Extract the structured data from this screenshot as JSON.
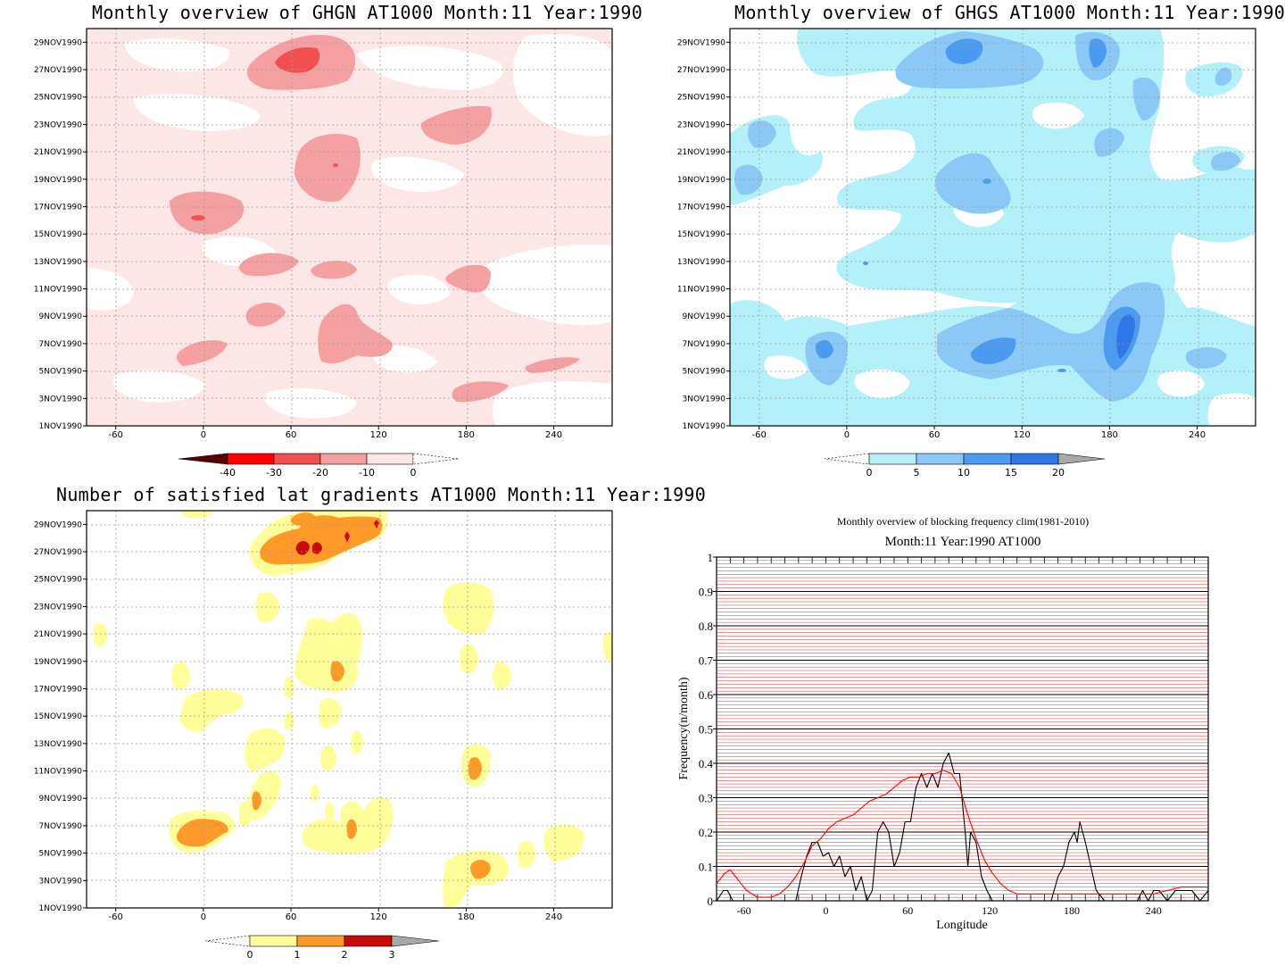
{
  "chart_data": [
    {
      "type": "heatmap",
      "title": "Monthly overview of GHGN AT1000 Month:11 Year:1990",
      "x_ticks": [
        "-60",
        "0",
        "60",
        "120",
        "180",
        "240"
      ],
      "y_ticks": [
        "1NOV1990",
        "3NOV1990",
        "5NOV1990",
        "7NOV1990",
        "9NOV1990",
        "11NOV1990",
        "13NOV1990",
        "15NOV1990",
        "17NOV1990",
        "19NOV1990",
        "21NOV1990",
        "23NOV1990",
        "25NOV1990",
        "27NOV1990",
        "29NOV1990"
      ],
      "xlim": [
        -80,
        280
      ],
      "grid": true,
      "colorbar": {
        "ticks": [
          "-40",
          "-30",
          "-20",
          "-10",
          "0"
        ],
        "colors": [
          "#5a0000",
          "#ff0000",
          "#f05050",
          "#f5a0a0",
          "#fde6e6"
        ],
        "extends": "both"
      },
      "color_levels": [
        {
          "range": [
            -10,
            0
          ],
          "color": "#fde6e6"
        },
        {
          "range": [
            -20,
            -10
          ],
          "color": "#f5a0a0"
        },
        {
          "range": [
            -30,
            -20
          ],
          "color": "#f05050"
        }
      ]
    },
    {
      "type": "heatmap",
      "title": "Monthly overview of GHGS AT1000 Month:11 Year:1990",
      "x_ticks": [
        "-60",
        "0",
        "60",
        "120",
        "180",
        "240"
      ],
      "y_ticks": [
        "1NOV1990",
        "3NOV1990",
        "5NOV1990",
        "7NOV1990",
        "9NOV1990",
        "11NOV1990",
        "13NOV1990",
        "15NOV1990",
        "17NOV1990",
        "19NOV1990",
        "21NOV1990",
        "23NOV1990",
        "25NOV1990",
        "27NOV1990",
        "29NOV1990"
      ],
      "xlim": [
        -80,
        280
      ],
      "grid": true,
      "colorbar": {
        "ticks": [
          "0",
          "5",
          "10",
          "15",
          "20"
        ],
        "colors": [
          "#b4f0fa",
          "#8cc8f5",
          "#4b9bf0",
          "#2d78e6",
          "#a8a8a8"
        ],
        "extends": "both"
      },
      "color_levels": [
        {
          "range": [
            0,
            5
          ],
          "color": "#b4f0fa"
        },
        {
          "range": [
            5,
            10
          ],
          "color": "#8cc8f5"
        },
        {
          "range": [
            10,
            15
          ],
          "color": "#4b9bf0"
        },
        {
          "range": [
            15,
            20
          ],
          "color": "#2d78e6"
        }
      ]
    },
    {
      "type": "heatmap",
      "title": "Number of satisfied lat gradients AT1000 Month:11 Year:1990",
      "x_ticks": [
        "-60",
        "0",
        "60",
        "120",
        "180",
        "240"
      ],
      "y_ticks": [
        "1NOV1990",
        "3NOV1990",
        "5NOV1990",
        "7NOV1990",
        "9NOV1990",
        "11NOV1990",
        "13NOV1990",
        "15NOV1990",
        "17NOV1990",
        "19NOV1990",
        "21NOV1990",
        "23NOV1990",
        "25NOV1990",
        "27NOV1990",
        "29NOV1990"
      ],
      "xlim": [
        -80,
        280
      ],
      "grid": true,
      "colorbar": {
        "ticks": [
          "0",
          "1",
          "2",
          "3"
        ],
        "colors": [
          "#ffff9a",
          "#ff9a28",
          "#c80a0a",
          "#a8a8a8"
        ],
        "extends": "both"
      },
      "color_levels": [
        {
          "range": [
            0,
            1
          ],
          "color": "#ffff9a"
        },
        {
          "range": [
            1,
            2
          ],
          "color": "#ff9a28"
        },
        {
          "range": [
            2,
            3
          ],
          "color": "#c80a0a"
        }
      ]
    },
    {
      "type": "line",
      "title": "Monthly overview of blocking frequency clim(1981-2010)",
      "subtitle": "Month:11 Year:1990  AT1000",
      "xlabel": "Longitude",
      "ylabel": "Frequency(n/month)",
      "xlim": [
        -80,
        280
      ],
      "ylim": [
        0,
        1
      ],
      "x_ticks": [
        "-60",
        "0",
        "60",
        "120",
        "180",
        "240"
      ],
      "y_ticks": [
        "0",
        "0.1",
        "0.2",
        "0.3",
        "0.4",
        "0.5",
        "0.6",
        "0.7",
        "0.8",
        "0.9",
        "1"
      ],
      "grid": true,
      "series": [
        {
          "color": "#000000",
          "x": [
            -80,
            -75,
            -72,
            -68,
            -64,
            -60,
            -52,
            -46,
            -40,
            -35,
            -30,
            -22,
            -18,
            -14,
            -10,
            -6,
            -2,
            2,
            6,
            10,
            14,
            18,
            22,
            26,
            30,
            34,
            38,
            42,
            46,
            50,
            54,
            58,
            62,
            66,
            70,
            74,
            78,
            82,
            86,
            90,
            94,
            98,
            102,
            104,
            106,
            110,
            114,
            118,
            122,
            126,
            130,
            140,
            150,
            160,
            165,
            170,
            174,
            178,
            182,
            184,
            186,
            190,
            194,
            198,
            204,
            210,
            216,
            222,
            228,
            232,
            236,
            240,
            244,
            250,
            256,
            262,
            268,
            274,
            280
          ],
          "y": [
            0,
            0.03,
            0.03,
            0,
            0,
            0,
            0,
            0,
            0,
            0,
            0,
            0,
            0.07,
            0.13,
            0.17,
            0.17,
            0.13,
            0.14,
            0.1,
            0.13,
            0.07,
            0.1,
            0.03,
            0.07,
            0,
            0.03,
            0.2,
            0.23,
            0.2,
            0.1,
            0.14,
            0.23,
            0.23,
            0.33,
            0.37,
            0.33,
            0.37,
            0.33,
            0.4,
            0.43,
            0.37,
            0.37,
            0.2,
            0.1,
            0.2,
            0.17,
            0.07,
            0.03,
            0,
            0,
            0,
            0,
            0,
            0,
            0,
            0.07,
            0.1,
            0.17,
            0.2,
            0.17,
            0.23,
            0.17,
            0.1,
            0.03,
            0,
            0,
            0,
            0,
            0,
            0.03,
            0,
            0.03,
            0.03,
            0,
            0.03,
            0.03,
            0.03,
            0,
            0.03
          ]
        },
        {
          "color": "#ff0000",
          "x": [
            -80,
            -74,
            -70,
            -66,
            -62,
            -58,
            -54,
            -50,
            -46,
            -40,
            -34,
            -28,
            -22,
            -16,
            -10,
            -4,
            2,
            8,
            14,
            20,
            26,
            32,
            38,
            44,
            50,
            56,
            62,
            68,
            74,
            80,
            86,
            92,
            98,
            104,
            110,
            116,
            122,
            128,
            134,
            140,
            150,
            160,
            170,
            180,
            190,
            200,
            210,
            220,
            230,
            240,
            250,
            260,
            270,
            280
          ],
          "y": [
            0.05,
            0.08,
            0.09,
            0.07,
            0.05,
            0.03,
            0.02,
            0.01,
            0.01,
            0.01,
            0.02,
            0.04,
            0.07,
            0.11,
            0.16,
            0.18,
            0.21,
            0.23,
            0.24,
            0.25,
            0.27,
            0.29,
            0.3,
            0.31,
            0.33,
            0.35,
            0.36,
            0.36,
            0.37,
            0.37,
            0.38,
            0.37,
            0.33,
            0.25,
            0.18,
            0.12,
            0.08,
            0.05,
            0.03,
            0.02,
            0.02,
            0.02,
            0.02,
            0.02,
            0.02,
            0.02,
            0.02,
            0.02,
            0.02,
            0.02,
            0.03,
            0.04,
            0.04,
            0.04
          ]
        }
      ]
    }
  ]
}
